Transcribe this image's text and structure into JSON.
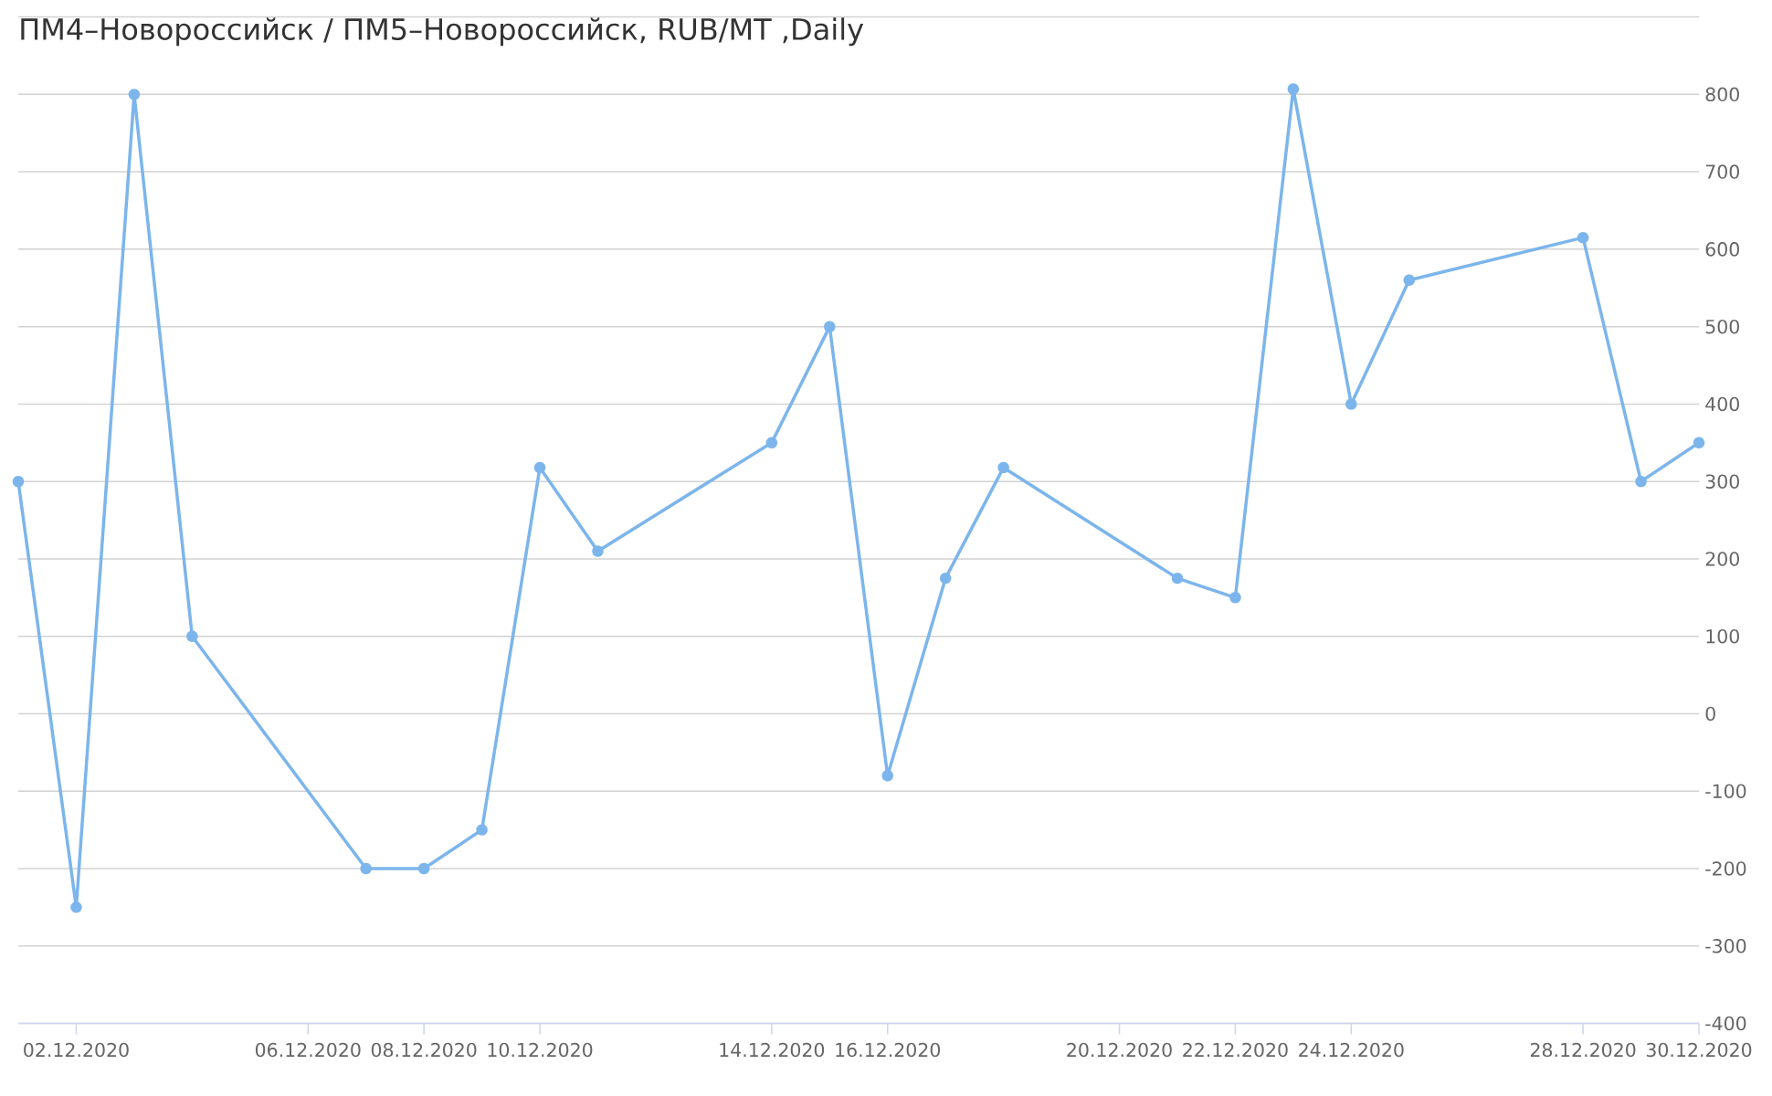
{
  "chart_data": {
    "type": "line",
    "title": "ПМ4–Новороссийск / ПМ5–Новороссийск, RUB/MT ,Daily",
    "x": [
      "2020-12-01",
      "2020-12-02",
      "2020-12-03",
      "2020-12-04",
      "2020-12-07",
      "2020-12-08",
      "2020-12-09",
      "2020-12-10",
      "2020-12-11",
      "2020-12-14",
      "2020-12-15",
      "2020-12-16",
      "2020-12-17",
      "2020-12-18",
      "2020-12-21",
      "2020-12-22",
      "2020-12-23",
      "2020-12-24",
      "2020-12-25",
      "2020-12-28",
      "2020-12-29",
      "2020-12-30"
    ],
    "values": [
      300,
      -250,
      800,
      100,
      -200,
      -200,
      -150,
      318,
      210,
      350,
      500,
      -80,
      175,
      318,
      175,
      150,
      807,
      400,
      560,
      615,
      300,
      350
    ],
    "color": "#7cb5ec",
    "xlim": [
      "2020-12-01",
      "2020-12-30"
    ],
    "xticks": [
      {
        "value": "2020-12-02",
        "label": "02.12.2020"
      },
      {
        "value": "2020-12-06",
        "label": "06.12.2020"
      },
      {
        "value": "2020-12-08",
        "label": "08.12.2020"
      },
      {
        "value": "2020-12-10",
        "label": "10.12.2020"
      },
      {
        "value": "2020-12-14",
        "label": "14.12.2020"
      },
      {
        "value": "2020-12-16",
        "label": "16.12.2020"
      },
      {
        "value": "2020-12-20",
        "label": "20.12.2020"
      },
      {
        "value": "2020-12-22",
        "label": "22.12.2020"
      },
      {
        "value": "2020-12-24",
        "label": "24.12.2020"
      },
      {
        "value": "2020-12-28",
        "label": "28.12.2020"
      },
      {
        "value": "2020-12-30",
        "label": "30.12.2020"
      }
    ],
    "ylim": [
      -400,
      900
    ],
    "yticks": [
      -400,
      -300,
      -200,
      -100,
      0,
      100,
      200,
      300,
      400,
      500,
      600,
      700,
      800,
      {
        "value": 900,
        "label": null
      }
    ],
    "grid": "y",
    "marker": "circle",
    "line_style": "solid"
  }
}
